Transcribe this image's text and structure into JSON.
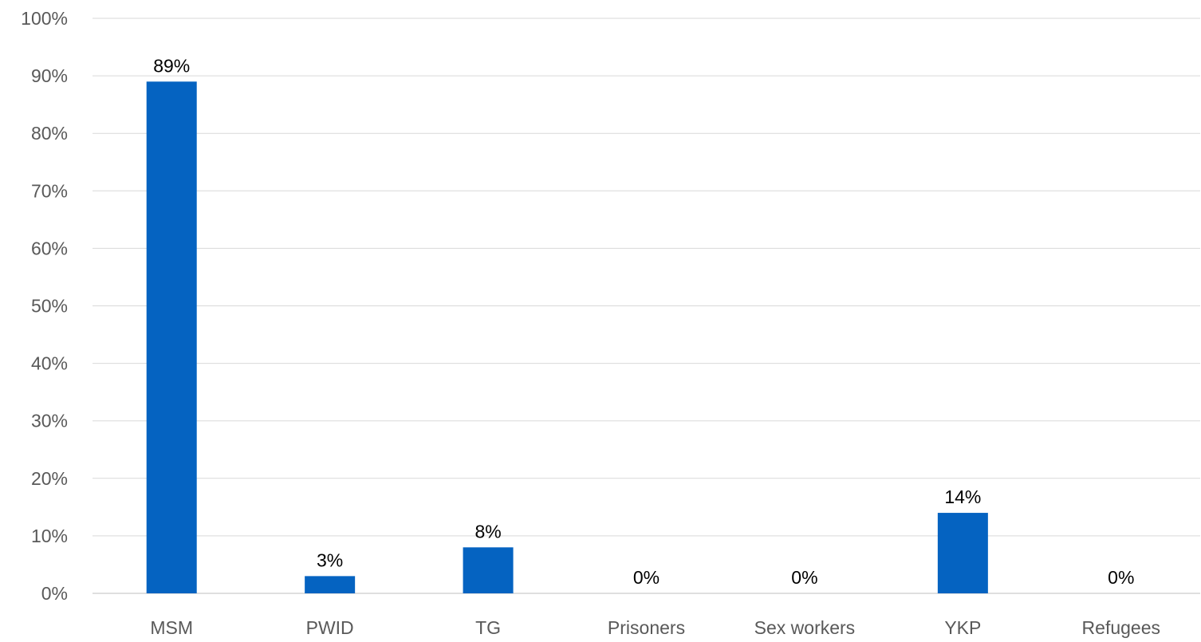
{
  "chart_data": {
    "type": "bar",
    "title": "",
    "xlabel": "",
    "ylabel": "",
    "categories": [
      "MSM",
      "PWID",
      "TG",
      "Prisoners",
      "Sex workers",
      "YKP",
      "Refugees"
    ],
    "values": [
      89,
      3,
      8,
      0,
      0,
      14,
      0
    ],
    "data_labels": [
      "89%",
      "3%",
      "8%",
      "0%",
      "0%",
      "14%",
      "0%"
    ],
    "ylim": [
      0,
      100
    ],
    "y_ticks": [
      0,
      10,
      20,
      30,
      40,
      50,
      60,
      70,
      80,
      90,
      100
    ],
    "y_tick_labels": [
      "0%",
      "10%",
      "20%",
      "30%",
      "40%",
      "50%",
      "60%",
      "70%",
      "80%",
      "90%",
      "100%"
    ],
    "grid": true,
    "legend": "none",
    "bar_color": "#0563C1"
  }
}
